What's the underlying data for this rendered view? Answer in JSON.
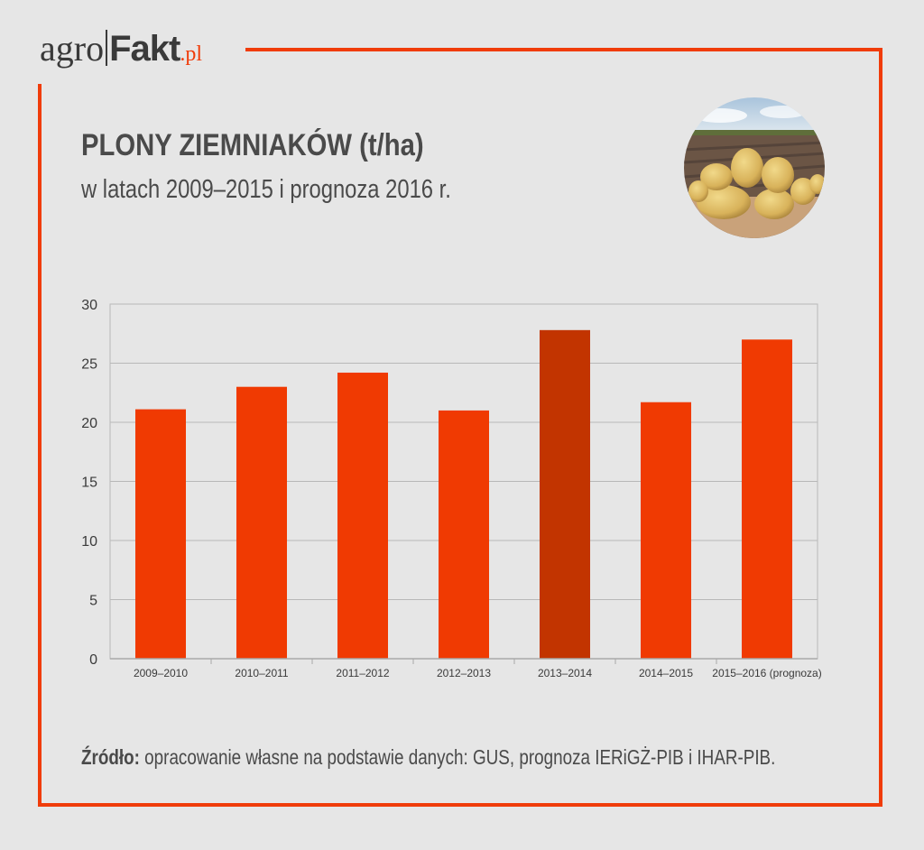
{
  "logo": {
    "agro": "agro",
    "fakt": "Fakt",
    "pl": ".pl"
  },
  "header": {
    "title": "PLONY ZIEMNIAKÓW (t/ha)",
    "subtitle": "w latach 2009–2015 i prognoza 2016 r."
  },
  "photo": {
    "icon": "potatoes-photo"
  },
  "footer": {
    "source_label": "Źródło:",
    "source_text": " opracowanie własne na podstawie danych: GUS, prognoza IERiGŻ-PIB i IHAR-PIB."
  },
  "colors": {
    "accent": "#f03c0a",
    "bar": "#f03a02",
    "bar_highlight": "#c23400",
    "text": "#4a4a4a",
    "background": "#e6e6e6"
  },
  "chart_data": {
    "type": "bar",
    "title": "PLONY ZIEMNIAKÓW (t/ha)",
    "subtitle": "w latach 2009–2015 i prognoza 2016 r.",
    "xlabel": "",
    "ylabel": "",
    "categories": [
      "2009–2010",
      "2010–2011",
      "2011–2012",
      "2012–2013",
      "2013–2014",
      "2014–2015",
      "2015–2016 (prognoza)"
    ],
    "values": [
      21.1,
      23.0,
      24.2,
      21.0,
      27.8,
      21.7,
      27.0
    ],
    "highlight_index": 4,
    "ylim": [
      0,
      30
    ],
    "yticks": [
      0,
      5,
      10,
      15,
      20,
      25,
      30
    ],
    "grid": true,
    "legend": "none"
  }
}
